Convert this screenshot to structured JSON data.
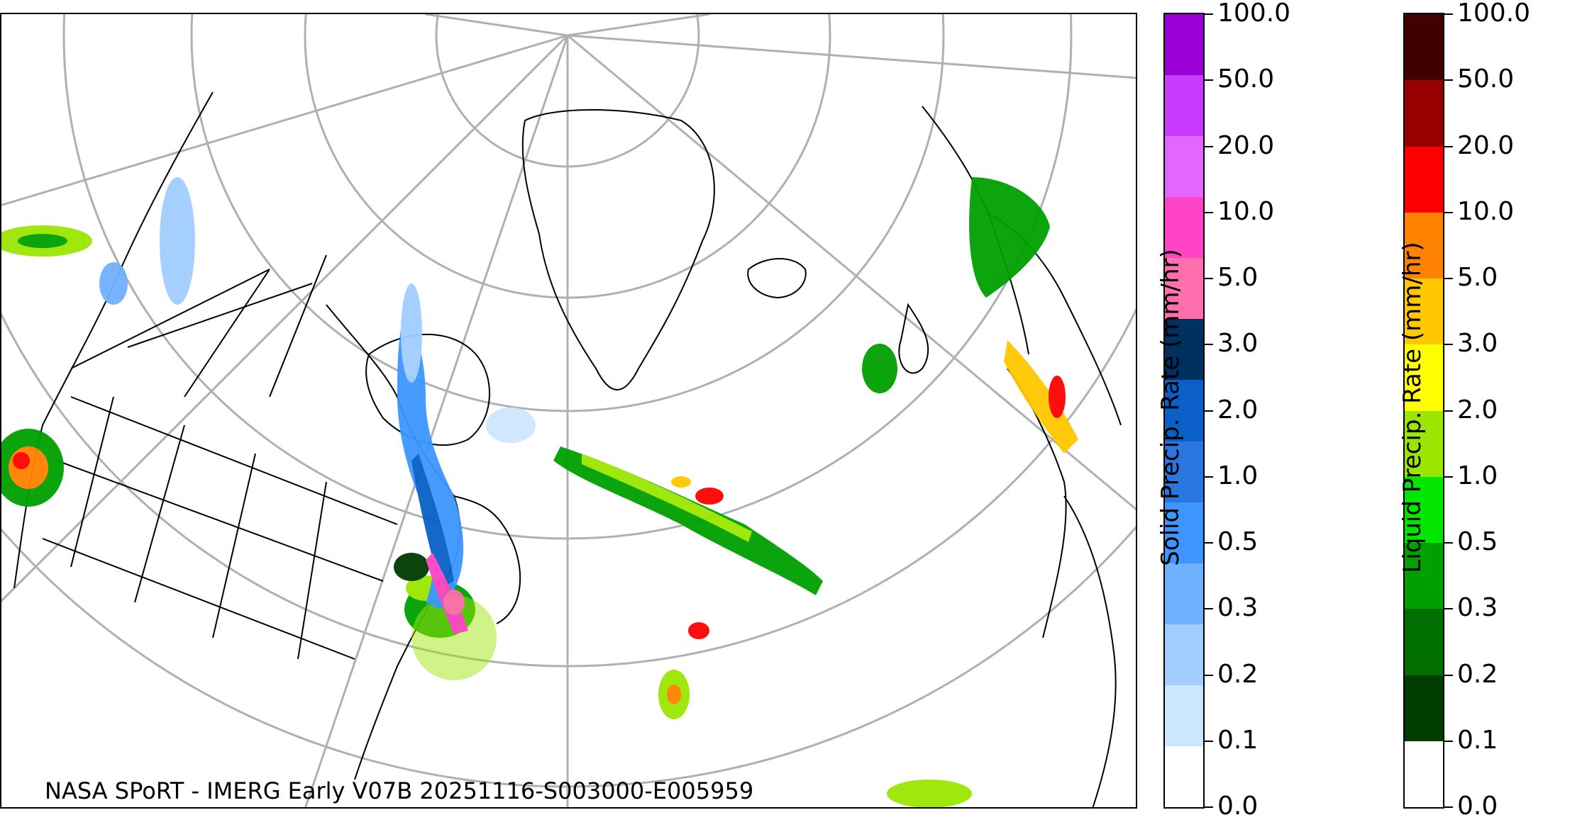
{
  "credit": "NASA SPoRT - IMERG Early V07B 20251116-S003000-E005959",
  "solid_colorbar": {
    "label": "Solid Precip. Rate (mm/hr)",
    "ticks": [
      "0.0",
      "0.1",
      "0.2",
      "0.3",
      "0.5",
      "1.0",
      "2.0",
      "3.0",
      "5.0",
      "10.0",
      "20.0",
      "50.0",
      "100.0"
    ],
    "colors": [
      "#ffffff",
      "#cde6ff",
      "#a1cdff",
      "#6fb1ff",
      "#3d96ff",
      "#2a77e0",
      "#0a5fc8",
      "#00305f",
      "#ff6fae",
      "#ff44c8",
      "#e266ff",
      "#c83cff",
      "#9a00d6"
    ]
  },
  "liquid_colorbar": {
    "label": "Liquid Precip. Rate (mm/hr)",
    "ticks": [
      "0.0",
      "0.1",
      "0.2",
      "0.3",
      "0.5",
      "1.0",
      "2.0",
      "3.0",
      "5.0",
      "10.0",
      "20.0",
      "50.0",
      "100.0"
    ],
    "colors": [
      "#ffffff",
      "#003c00",
      "#006e00",
      "#00a000",
      "#00e600",
      "#9ae600",
      "#ffff00",
      "#ffc800",
      "#ff8200",
      "#ff0000",
      "#960000",
      "#400000"
    ]
  }
}
